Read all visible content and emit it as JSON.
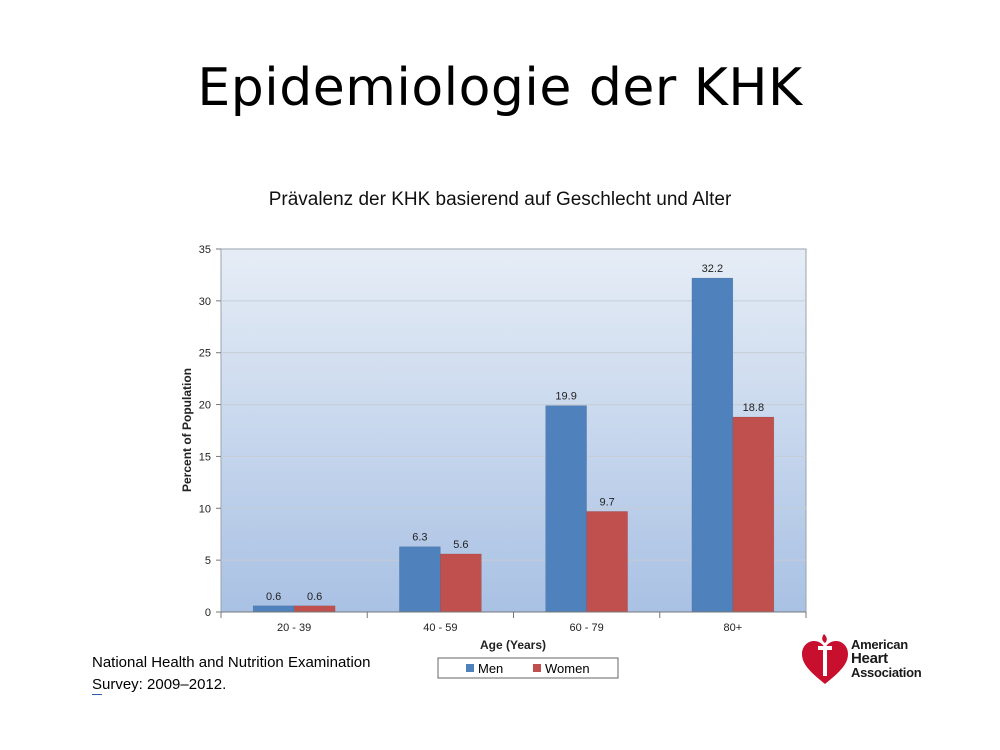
{
  "slide": {
    "title": "Epidemiologie der KHK",
    "source_line1": "National Health and Nutrition Examination",
    "source_line2": "Survey: 2009–2012."
  },
  "logo": {
    "line1": "American",
    "line2": "Heart",
    "line3": "Association"
  },
  "chart_data": {
    "type": "bar",
    "title": "Prävalenz der KHK basierend auf Geschlecht und Alter",
    "xlabel": "Age (Years)",
    "ylabel": "Percent of Population",
    "categories": [
      "20 - 39",
      "40 - 59",
      "60 - 79",
      "80+"
    ],
    "series": [
      {
        "name": "Men",
        "values": [
          0.6,
          6.3,
          19.9,
          32.2
        ],
        "color": "#4f81bd"
      },
      {
        "name": "Women",
        "values": [
          0.6,
          5.6,
          9.7,
          18.8
        ],
        "color": "#c0504d"
      }
    ],
    "ylim": [
      0,
      35
    ],
    "yticks": [
      0,
      5,
      10,
      15,
      20,
      25,
      30,
      35
    ],
    "grid": true,
    "legend": "bottom-center",
    "background_gradient": [
      "#e6edf6",
      "#a9c1e4"
    ]
  }
}
